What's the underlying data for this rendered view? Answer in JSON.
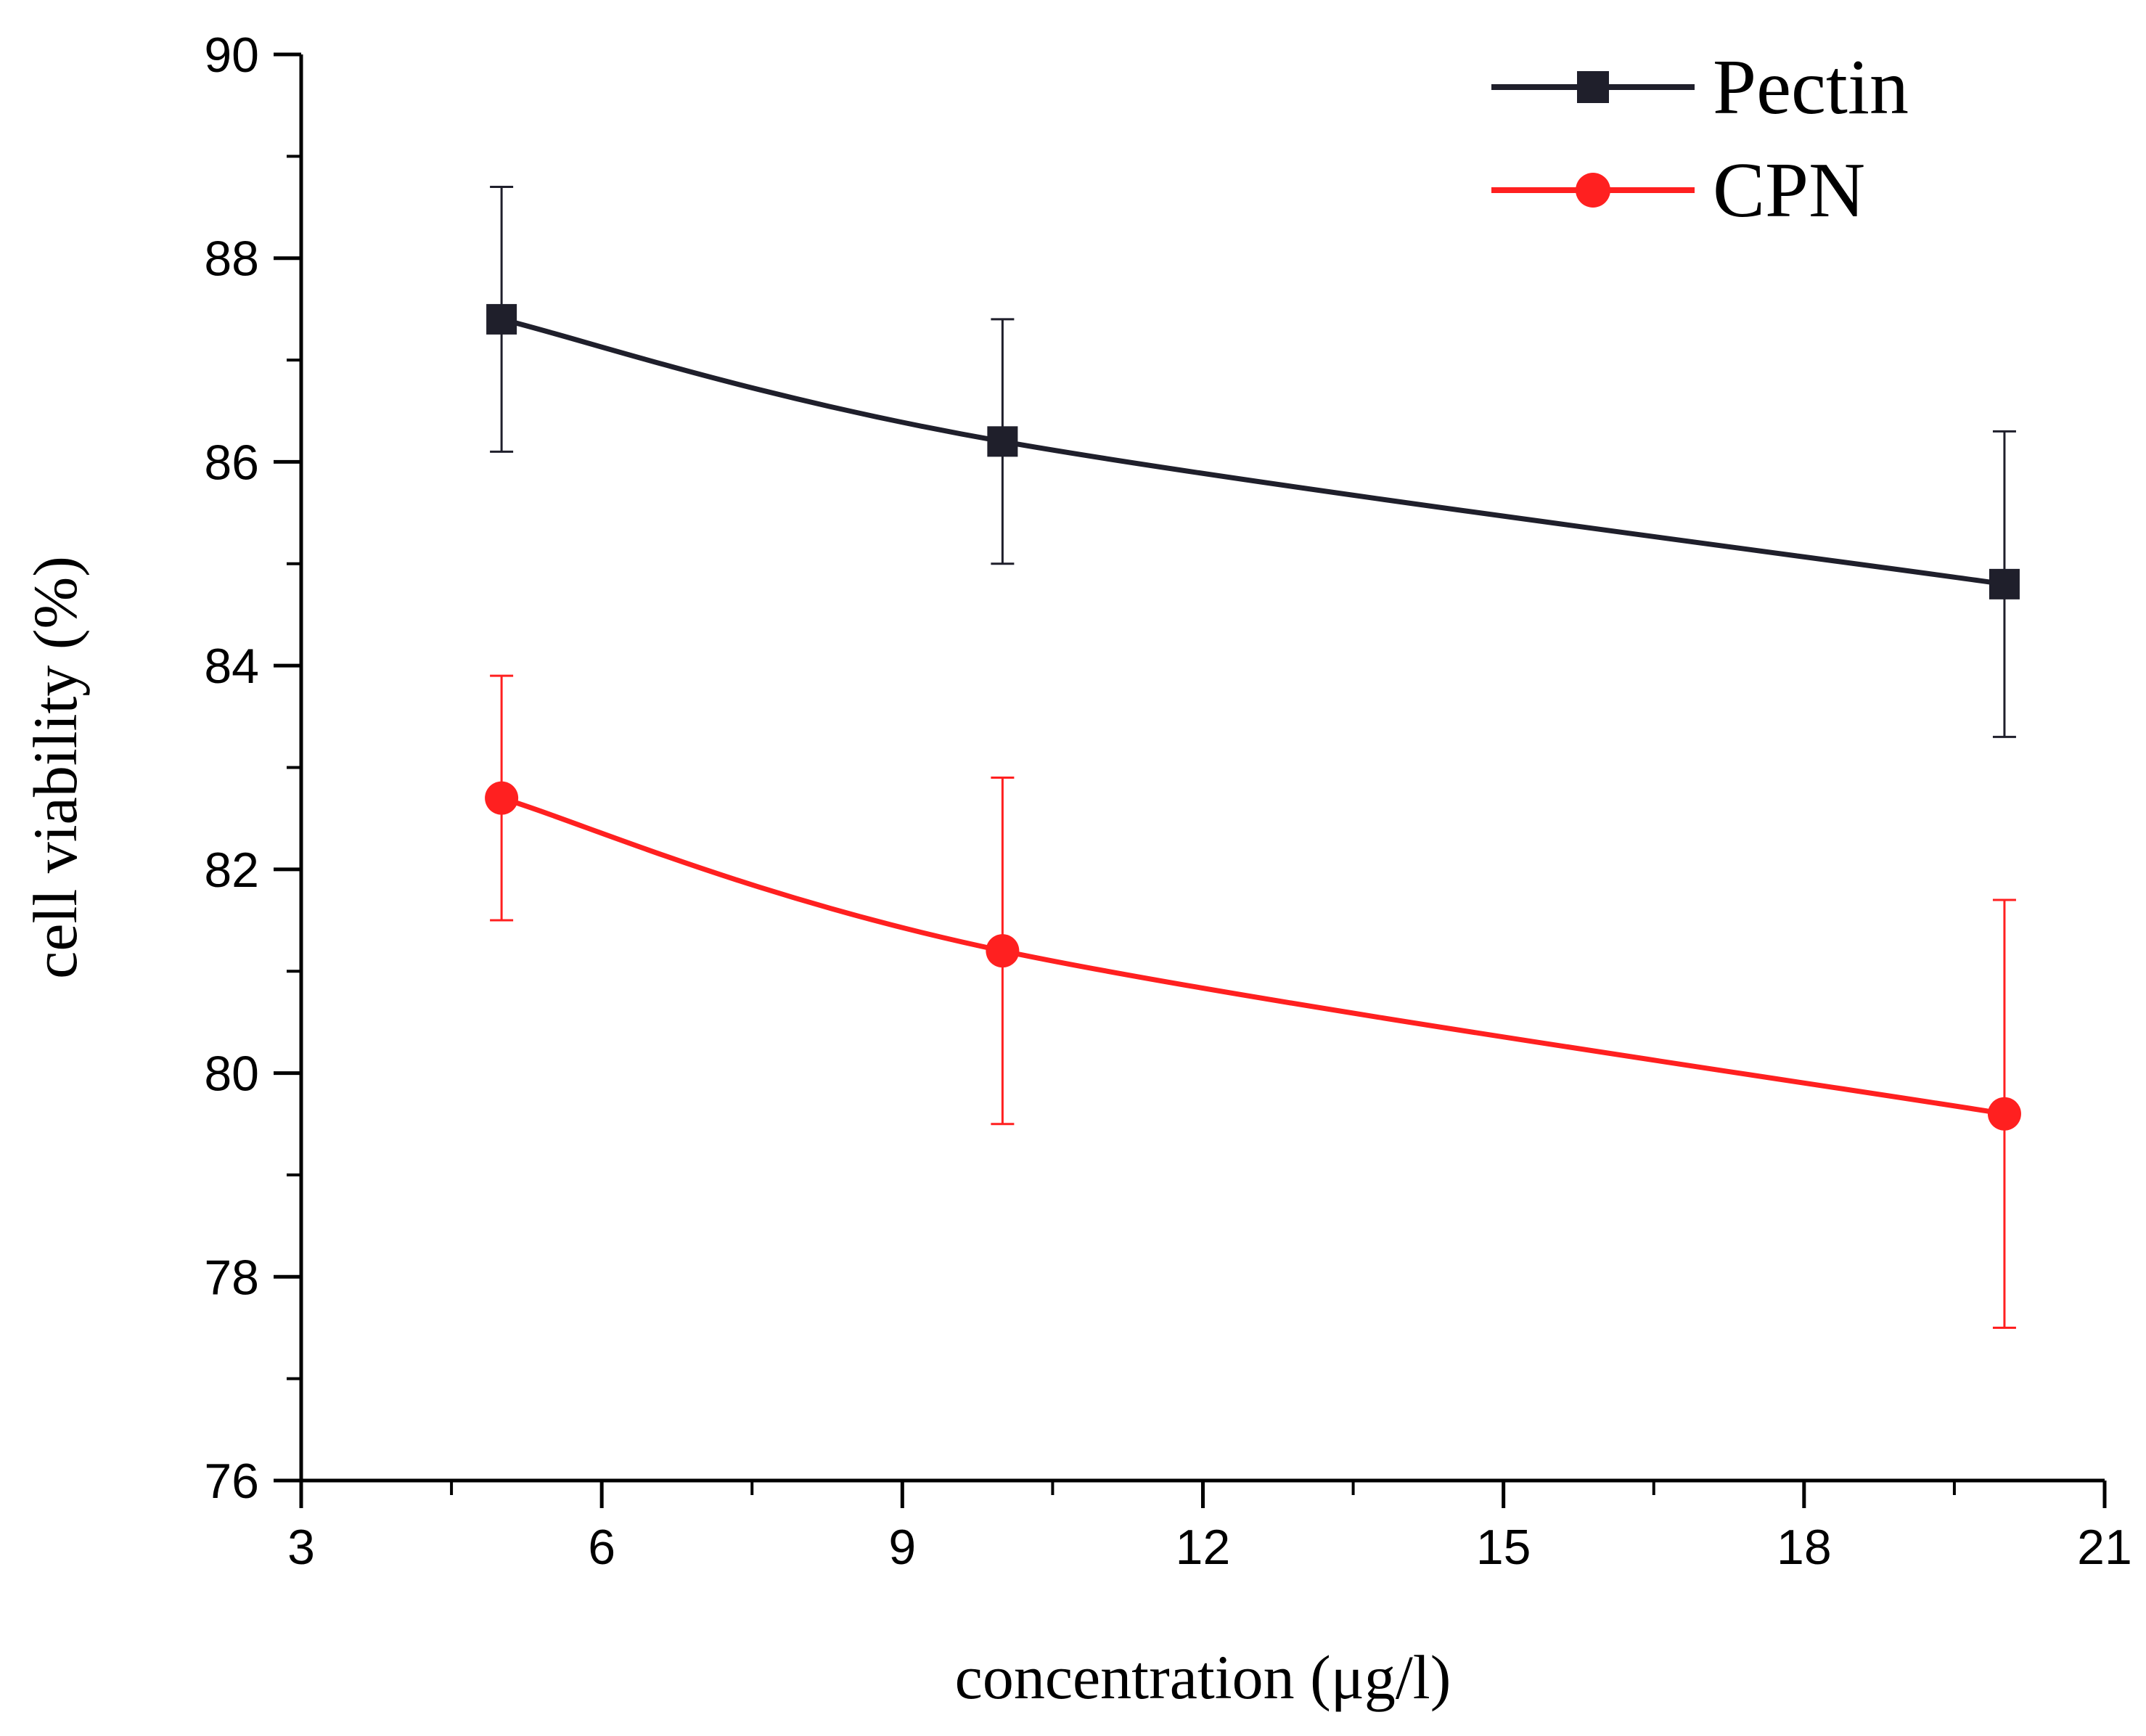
{
  "chart_data": {
    "type": "line",
    "title": "",
    "xlabel": "concentration (μg/l)",
    "ylabel": "cell viability (%)",
    "xlim": [
      3,
      21
    ],
    "ylim": [
      76,
      90
    ],
    "xticks": [
      3,
      6,
      9,
      12,
      15,
      18,
      21
    ],
    "yticks": [
      76,
      78,
      80,
      82,
      84,
      86,
      88,
      90
    ],
    "x_tick_labels": [
      "3",
      "6",
      "9",
      "12",
      "15",
      "18",
      "21"
    ],
    "y_tick_labels": [
      "76",
      "78",
      "80",
      "82",
      "84",
      "86",
      "88",
      "90"
    ],
    "grid": false,
    "legend_position": "top-right",
    "smooth": true,
    "series": [
      {
        "name": "Pectin",
        "color": "#1f1f2b",
        "marker": "square",
        "x": [
          5,
          10,
          20
        ],
        "values": [
          87.4,
          86.2,
          84.8
        ],
        "error": [
          1.3,
          1.2,
          1.5
        ]
      },
      {
        "name": "CPN",
        "color": "#ff2020",
        "marker": "circle",
        "x": [
          5,
          10,
          20
        ],
        "values": [
          82.7,
          81.2,
          79.6
        ],
        "error": [
          1.2,
          1.7,
          2.1
        ]
      }
    ]
  }
}
